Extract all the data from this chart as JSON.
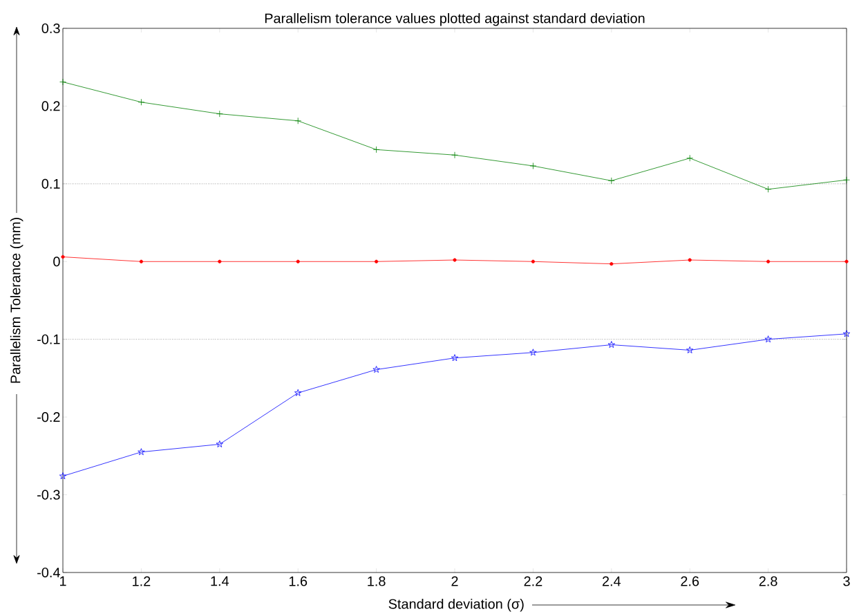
{
  "chart_data": {
    "type": "line",
    "title": "Parallelism tolerance values plotted against standard deviation",
    "xlabel": "Standard deviation (σ)",
    "ylabel": "Parallelism Tolerance (mm)",
    "x": [
      1,
      1.2,
      1.4,
      1.6,
      1.8,
      2,
      2.2,
      2.4,
      2.6,
      2.8,
      3
    ],
    "series": [
      {
        "color": "#008000",
        "marker": "cross",
        "values": [
          0.231,
          0.205,
          0.19,
          0.181,
          0.144,
          0.137,
          0.123,
          0.104,
          0.133,
          0.093,
          0.105
        ]
      },
      {
        "color": "#ff0000",
        "marker": "circle",
        "values": [
          0.006,
          0.0,
          0.0,
          0.0,
          0.0,
          0.002,
          0.0,
          -0.003,
          0.002,
          0.0,
          0.0
        ]
      },
      {
        "color": "#0000ff",
        "marker": "star",
        "values": [
          -0.276,
          -0.245,
          -0.235,
          -0.169,
          -0.139,
          -0.124,
          -0.117,
          -0.107,
          -0.114,
          -0.1,
          -0.093
        ]
      }
    ],
    "ref_lines": [
      {
        "axis": "y",
        "value": 0.1,
        "color": "#000000",
        "line_style": "dotted"
      },
      {
        "axis": "y",
        "value": -0.1,
        "color": "#000000",
        "line_style": "dotted"
      }
    ],
    "xlim": [
      1,
      3
    ],
    "xticks": [
      1,
      1.2,
      1.4,
      1.6,
      1.8,
      2,
      2.2,
      2.4,
      2.6,
      2.8,
      3
    ],
    "ylim": [
      -0.4,
      0.3
    ],
    "yticks": [
      -0.4,
      -0.3,
      -0.2,
      -0.1,
      0,
      0.1,
      0.2,
      0.3
    ],
    "grid": false,
    "line_style": "solid"
  }
}
